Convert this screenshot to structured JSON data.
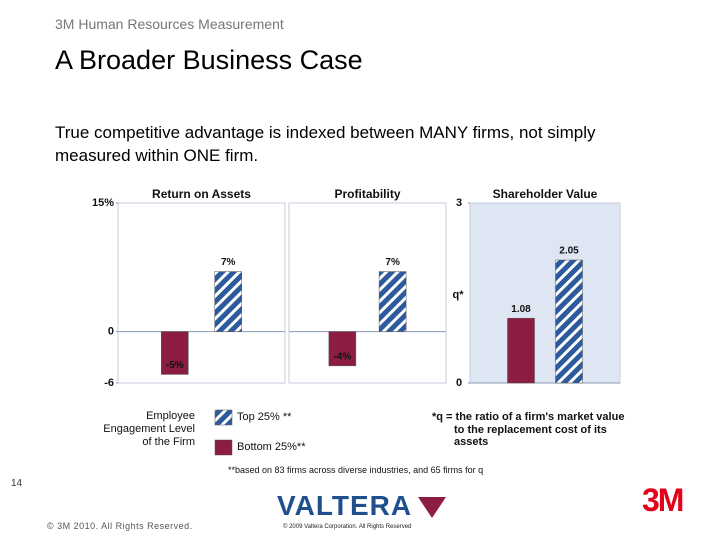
{
  "header": {
    "subtitle": "3M Human Resources Measurement",
    "title": "A Broader Business Case",
    "text": "True competitive advantage is indexed between MANY firms, not simply measured within ONE firm."
  },
  "chart_data": [
    {
      "type": "bar",
      "title": "Return on Assets",
      "ylim": [
        -6,
        15
      ],
      "yticks": [
        {
          "value": 15,
          "label": "15%"
        },
        0,
        -6
      ],
      "series": [
        {
          "name": "Bottom 25%**",
          "color": "#8c1d40",
          "values": [
            -5
          ],
          "value_labels": [
            "-5%"
          ]
        },
        {
          "name": "Top 25% **",
          "color": "#2c5a9c",
          "values": [
            7
          ],
          "value_labels": [
            "7%"
          ]
        }
      ]
    },
    {
      "type": "bar",
      "title": "Profitability",
      "ylim": [
        -6,
        15
      ],
      "series": [
        {
          "color": "#8c1d40",
          "values": [
            -4
          ],
          "value_labels": [
            "-4%"
          ]
        },
        {
          "color": "#2c5a9c",
          "values": [
            7
          ],
          "value_labels": [
            "7%"
          ]
        }
      ]
    },
    {
      "type": "bar",
      "title": "Shareholder Value",
      "y_label": "q*",
      "ylim": [
        0,
        3
      ],
      "yticks": [
        3,
        0
      ],
      "series": [
        {
          "color": "#8c1d40",
          "values": [
            1.08
          ]
        },
        {
          "color": "#2c5a9c",
          "values": [
            2.05
          ]
        }
      ]
    }
  ],
  "legend": {
    "title": "Employee Engagement Level of the Firm"
  },
  "notes": {
    "q_definition": "*q = the ratio of a firm's market value to the replacement cost of its assets",
    "footnote": "**based on 83 firms across diverse industries, and 65 firms for q"
  },
  "footer": {
    "page": "14",
    "copyright": "© 3M 2010. All Rights Reserved.",
    "valtera_logo": "VALTERA",
    "valtera_copyright": "© 2009 Valtera Corporation. All Rights Reserved",
    "brand_logo": "3M"
  }
}
